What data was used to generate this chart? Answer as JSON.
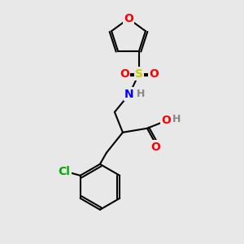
{
  "bg_color": "#e8e8e8",
  "bond_color": "#000000",
  "bond_lw": 1.5,
  "atom_colors": {
    "O": "#ff0000",
    "S": "#cccc00",
    "N": "#0000ff",
    "Cl": "#00aa00",
    "H": "#888888",
    "C": "#000000"
  },
  "font_size": 9
}
